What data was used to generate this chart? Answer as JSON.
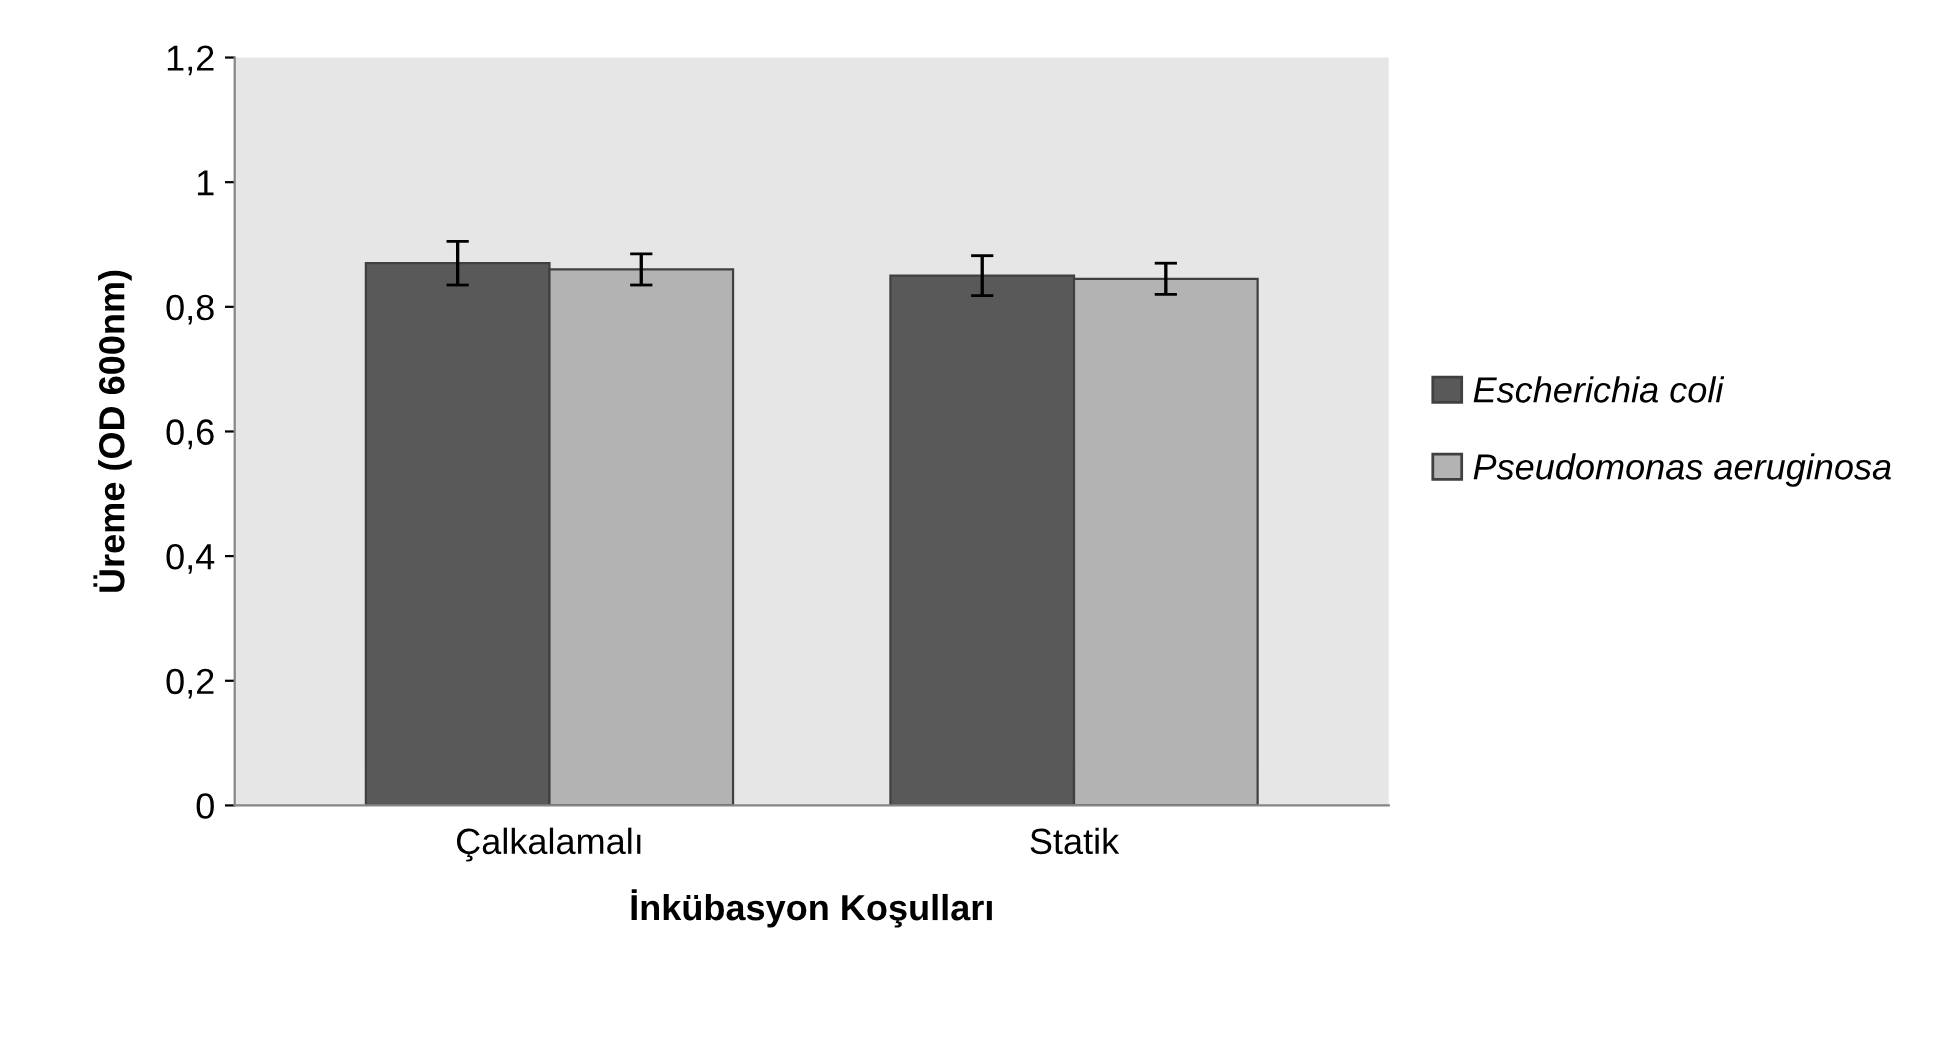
{
  "chart_data": {
    "type": "bar",
    "xlabel": "İnkübasyon Koşulları",
    "ylabel": "Üreme (OD 600nm)",
    "categories": [
      "Çalkalamalı",
      "Statik"
    ],
    "series": [
      {
        "name": "Escherichia coli",
        "color": "#595959",
        "values": [
          0.87,
          0.85
        ],
        "errors": [
          0.035,
          0.032
        ]
      },
      {
        "name": "Pseudomonas aeruginosa",
        "color": "#b3b3b3",
        "values": [
          0.86,
          0.845
        ],
        "errors": [
          0.025,
          0.025
        ]
      }
    ],
    "ylim": [
      0,
      1.2
    ],
    "yticks": [
      0,
      {
        "value": 0.2,
        "label": "0,2"
      },
      {
        "value": 0.4,
        "label": "0,4"
      },
      {
        "value": 0.6,
        "label": "0,6"
      },
      {
        "value": 0.8,
        "label": "0,8"
      },
      1,
      {
        "value": 1.2,
        "label": "1,2"
      }
    ],
    "grid": false,
    "legend": "right"
  }
}
